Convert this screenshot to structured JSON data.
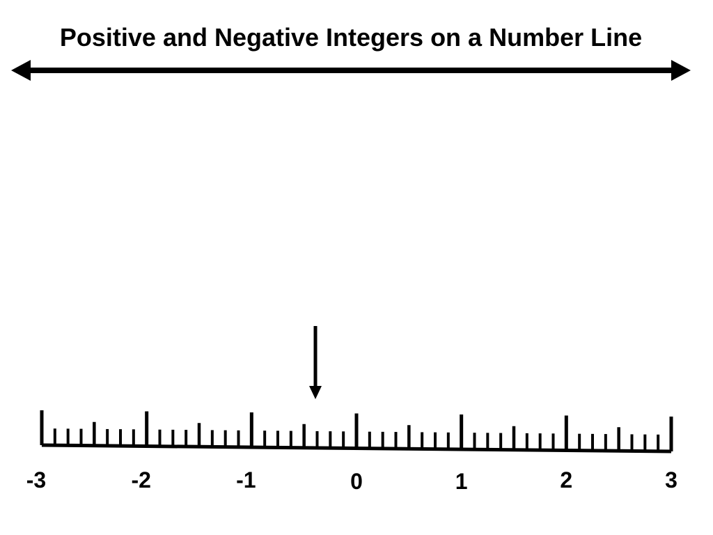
{
  "title": "Positive and Negative Integers on a Number Line",
  "colors": {
    "ink": "#000000",
    "background": "#ffffff"
  },
  "number_line": {
    "min": -3,
    "max": 3,
    "labels": [
      "-3",
      "-2",
      "-1",
      "0",
      "1",
      "2",
      "3"
    ],
    "major_step": 1,
    "half_step": 0.5,
    "minor_step": 0.125,
    "pointer_value": -0.375
  },
  "icons": {
    "double_arrow": "double-headed-arrow-icon",
    "pointer": "down-arrow-icon"
  }
}
